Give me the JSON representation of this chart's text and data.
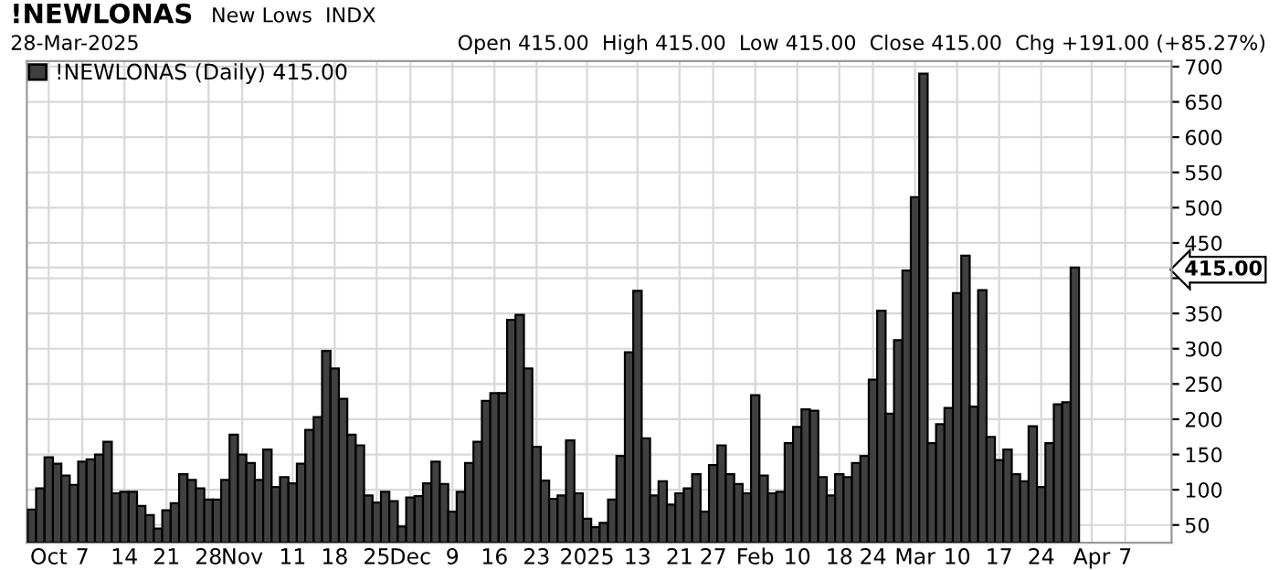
{
  "chart_data": {
    "type": "bar",
    "title": "!NEWLONAS",
    "subtitle": "New Lows  INDX",
    "annotations": [
      "28-Mar-2025",
      "Open 415.00  High 415.00  Low 415.00  Close 415.00  Chg +191.00 (+85.27%)"
    ],
    "categories": [
      null,
      null,
      "Oct",
      null,
      null,
      null,
      "7",
      null,
      null,
      null,
      null,
      "14",
      null,
      null,
      null,
      null,
      "21",
      null,
      null,
      null,
      null,
      "28",
      null,
      null,
      null,
      "Nov",
      null,
      null,
      null,
      null,
      null,
      "11",
      null,
      null,
      null,
      null,
      "18",
      null,
      null,
      null,
      null,
      "25",
      null,
      null,
      null,
      "Dec",
      null,
      null,
      null,
      null,
      "9",
      null,
      null,
      null,
      null,
      "16",
      null,
      null,
      null,
      null,
      "23",
      null,
      null,
      null,
      null,
      null,
      "2025",
      null,
      null,
      null,
      null,
      null,
      "13",
      null,
      null,
      null,
      null,
      "21",
      null,
      null,
      null,
      "27",
      null,
      null,
      null,
      null,
      "Feb",
      null,
      null,
      null,
      null,
      "10",
      null,
      null,
      null,
      null,
      "18",
      null,
      null,
      null,
      "24",
      null,
      null,
      null,
      null,
      "Mar",
      null,
      null,
      null,
      null,
      "10",
      null,
      null,
      null,
      null,
      "17",
      null,
      null,
      null,
      null,
      "24",
      null,
      null,
      null,
      null,
      null,
      "Apr",
      null,
      null,
      null,
      "7",
      null,
      null,
      null,
      null,
      null
    ],
    "series": [
      {
        "name": "!NEWLONAS (Daily) 415.00",
        "color": "#404040",
        "values": [
          72,
          102,
          146,
          137,
          120,
          107,
          140,
          143,
          150,
          168,
          95,
          97,
          97,
          77,
          64,
          45,
          71,
          81,
          122,
          114,
          102,
          86,
          86,
          114,
          178,
          150,
          138,
          114,
          157,
          104,
          118,
          109,
          137,
          185,
          203,
          297,
          272,
          229,
          178,
          163,
          92,
          82,
          97,
          84,
          48,
          89,
          91,
          109,
          140,
          108,
          69,
          97,
          138,
          168,
          226,
          237,
          237,
          341,
          348,
          272,
          161,
          113,
          87,
          92,
          170,
          95,
          59,
          47,
          53,
          86,
          148,
          295,
          382,
          173,
          92,
          112,
          79,
          95,
          102,
          122,
          69,
          135,
          163,
          122,
          108,
          95,
          234,
          120,
          95,
          97,
          166,
          189,
          214,
          212,
          118,
          92,
          122,
          118,
          138,
          148,
          256,
          354,
          208,
          312,
          411,
          515,
          690,
          166,
          193,
          216,
          379,
          432,
          218,
          383,
          175,
          142,
          157,
          122,
          112,
          190,
          104,
          166,
          221,
          224,
          415,
          null,
          null,
          null,
          null,
          null,
          null,
          null,
          null,
          null,
          null,
          null
        ]
      }
    ],
    "ylim": [
      25,
      708
    ],
    "yticks": [
      50,
      100,
      150,
      200,
      250,
      300,
      350,
      {
        "value": 400,
        "label": null
      },
      {
        "value": 415,
        "label": "415.00"
      },
      450,
      500,
      550,
      600,
      650,
      700
    ],
    "grid": true,
    "legend": "top left"
  }
}
